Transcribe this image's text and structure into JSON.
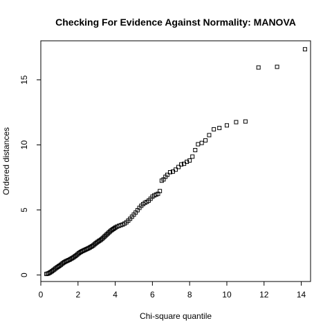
{
  "chart_data": {
    "type": "scatter",
    "title": "Checking For Evidence Against Normality: MANOVA",
    "xlabel": "Chi-square quantile",
    "ylabel": "Ordered distances",
    "xlim": [
      0,
      14.5
    ],
    "ylim": [
      -0.5,
      18
    ],
    "xticks": [
      0,
      2,
      4,
      6,
      8,
      10,
      12,
      14
    ],
    "yticks": [
      0,
      5,
      10,
      15
    ],
    "grid": false,
    "marker": "square",
    "points": [
      [
        0.3,
        0.08
      ],
      [
        0.36,
        0.1
      ],
      [
        0.42,
        0.13
      ],
      [
        0.48,
        0.18
      ],
      [
        0.54,
        0.23
      ],
      [
        0.6,
        0.29
      ],
      [
        0.66,
        0.36
      ],
      [
        0.72,
        0.42
      ],
      [
        0.78,
        0.49
      ],
      [
        0.84,
        0.55
      ],
      [
        0.9,
        0.61
      ],
      [
        0.96,
        0.67
      ],
      [
        1.02,
        0.73
      ],
      [
        1.08,
        0.79
      ],
      [
        1.14,
        0.86
      ],
      [
        1.2,
        0.92
      ],
      [
        1.26,
        0.98
      ],
      [
        1.32,
        1.03
      ],
      [
        1.38,
        1.07
      ],
      [
        1.44,
        1.11
      ],
      [
        1.5,
        1.15
      ],
      [
        1.56,
        1.19
      ],
      [
        1.62,
        1.24
      ],
      [
        1.68,
        1.29
      ],
      [
        1.74,
        1.34
      ],
      [
        1.8,
        1.4
      ],
      [
        1.86,
        1.46
      ],
      [
        1.92,
        1.53
      ],
      [
        1.98,
        1.6
      ],
      [
        2.04,
        1.67
      ],
      [
        2.1,
        1.73
      ],
      [
        2.16,
        1.78
      ],
      [
        2.22,
        1.83
      ],
      [
        2.28,
        1.87
      ],
      [
        2.34,
        1.91
      ],
      [
        2.4,
        1.95
      ],
      [
        2.46,
        1.99
      ],
      [
        2.52,
        2.03
      ],
      [
        2.58,
        2.07
      ],
      [
        2.64,
        2.12
      ],
      [
        2.7,
        2.17
      ],
      [
        2.76,
        2.22
      ],
      [
        2.82,
        2.28
      ],
      [
        2.88,
        2.35
      ],
      [
        2.94,
        2.42
      ],
      [
        3.0,
        2.49
      ],
      [
        3.06,
        2.55
      ],
      [
        3.12,
        2.61
      ],
      [
        3.18,
        2.66
      ],
      [
        3.24,
        2.72
      ],
      [
        3.3,
        2.79
      ],
      [
        3.36,
        2.87
      ],
      [
        3.42,
        2.95
      ],
      [
        3.48,
        3.03
      ],
      [
        3.54,
        3.11
      ],
      [
        3.6,
        3.19
      ],
      [
        3.66,
        3.27
      ],
      [
        3.72,
        3.35
      ],
      [
        3.78,
        3.42
      ],
      [
        3.84,
        3.48
      ],
      [
        3.9,
        3.54
      ],
      [
        3.96,
        3.6
      ],
      [
        4.02,
        3.66
      ],
      [
        4.1,
        3.72
      ],
      [
        4.2,
        3.78
      ],
      [
        4.3,
        3.83
      ],
      [
        4.4,
        3.88
      ],
      [
        4.5,
        3.95
      ],
      [
        4.6,
        4.05
      ],
      [
        4.7,
        4.18
      ],
      [
        4.8,
        4.32
      ],
      [
        4.9,
        4.48
      ],
      [
        5.0,
        4.64
      ],
      [
        5.1,
        4.8
      ],
      [
        5.2,
        4.98
      ],
      [
        5.3,
        5.16
      ],
      [
        5.4,
        5.32
      ],
      [
        5.5,
        5.45
      ],
      [
        5.6,
        5.55
      ],
      [
        5.7,
        5.62
      ],
      [
        5.8,
        5.72
      ],
      [
        5.9,
        5.86
      ],
      [
        6.0,
        6.02
      ],
      [
        6.1,
        6.12
      ],
      [
        6.2,
        6.18
      ],
      [
        6.3,
        6.24
      ],
      [
        6.4,
        6.45
      ],
      [
        6.5,
        7.25
      ],
      [
        6.6,
        7.35
      ],
      [
        6.7,
        7.55
      ],
      [
        6.8,
        7.7
      ],
      [
        6.95,
        7.9
      ],
      [
        7.1,
        7.95
      ],
      [
        7.25,
        8.1
      ],
      [
        7.4,
        8.3
      ],
      [
        7.55,
        8.5
      ],
      [
        7.7,
        8.55
      ],
      [
        7.85,
        8.7
      ],
      [
        8.0,
        8.8
      ],
      [
        8.15,
        9.1
      ],
      [
        8.3,
        9.6
      ],
      [
        8.45,
        10.05
      ],
      [
        8.65,
        10.15
      ],
      [
        8.85,
        10.35
      ],
      [
        9.05,
        10.75
      ],
      [
        9.3,
        11.2
      ],
      [
        9.6,
        11.3
      ],
      [
        10.0,
        11.5
      ],
      [
        10.5,
        11.75
      ],
      [
        11.0,
        11.8
      ],
      [
        11.7,
        15.95
      ],
      [
        12.7,
        16.0
      ],
      [
        14.2,
        17.35
      ]
    ]
  }
}
